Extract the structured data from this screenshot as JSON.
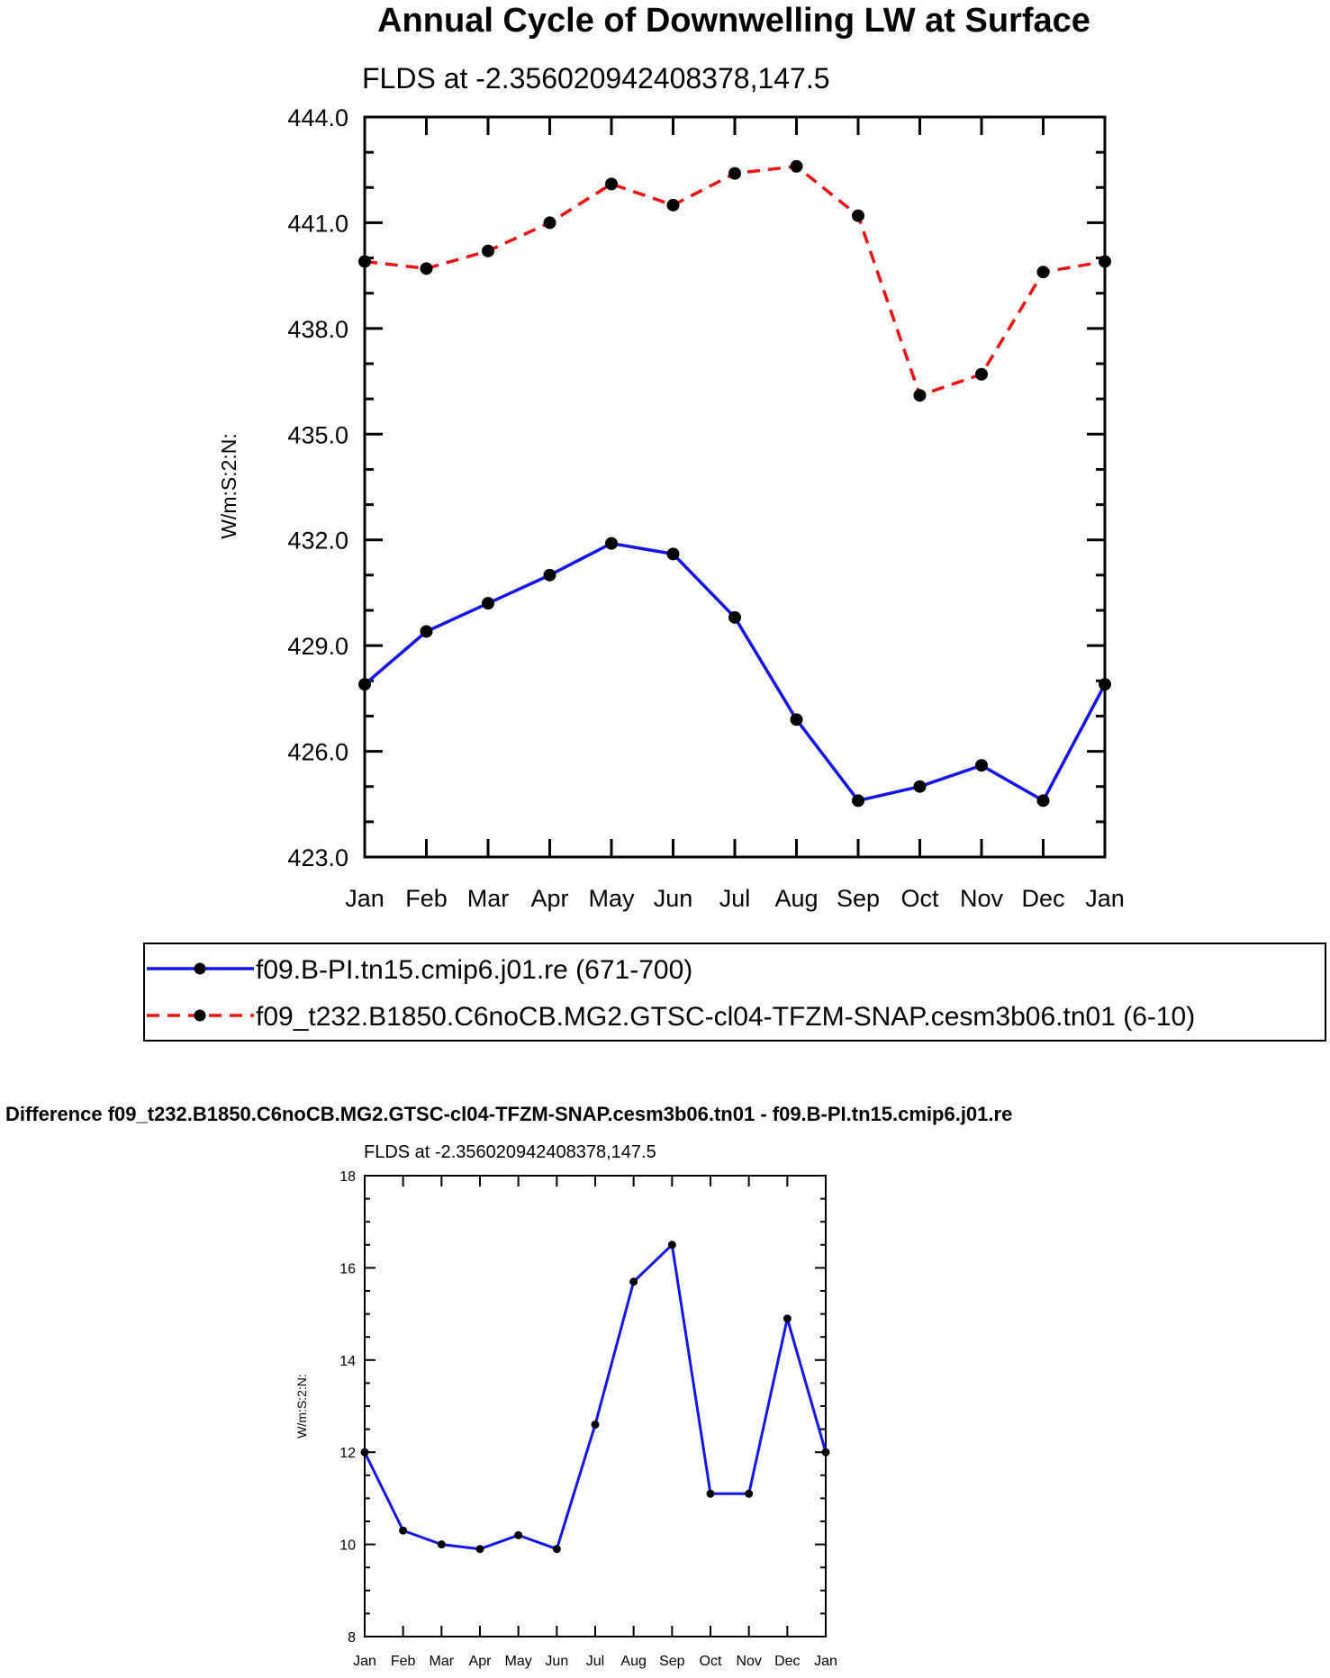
{
  "chart_data": [
    {
      "type": "line",
      "title": "Annual Cycle of Downwelling LW at Surface",
      "subtitle": "FLDS at -2.356020942408378,147.5",
      "xlabel": "",
      "ylabel": "W/m:S:2:N:",
      "categories": [
        "Jan",
        "Feb",
        "Mar",
        "Apr",
        "May",
        "Jun",
        "Jul",
        "Aug",
        "Sep",
        "Oct",
        "Nov",
        "Dec",
        "Jan"
      ],
      "ylim": [
        423.0,
        444.0
      ],
      "yticks": [
        "423.0",
        "426.0",
        "429.0",
        "432.0",
        "435.0",
        "438.0",
        "441.0",
        "444.0"
      ],
      "series": [
        {
          "name": "f09.B-PI.tn15.cmip6.j01.re (671-700)",
          "color": "#1414ee",
          "dash": "solid",
          "values": [
            427.9,
            429.4,
            430.2,
            431.0,
            431.9,
            431.6,
            429.8,
            426.9,
            424.6,
            425.0,
            425.6,
            424.6,
            427.9
          ]
        },
        {
          "name": "f09_t232.B1850.C6noCB.MG2.GTSC-cl04-TFZM-SNAP.cesm3b06.tn01 (6-10)",
          "color": "#ee1111",
          "dash": "dashed",
          "values": [
            439.9,
            439.7,
            440.2,
            441.0,
            442.1,
            441.5,
            442.4,
            442.6,
            441.2,
            436.1,
            436.7,
            439.6,
            439.9
          ]
        }
      ],
      "legend": "bottom",
      "grid": false
    },
    {
      "type": "line",
      "title": "Difference f09_t232.B1850.C6noCB.MG2.GTSC-cl04-TFZM-SNAP.cesm3b06.tn01 - f09.B-PI.tn15.cmip6.j01.re",
      "subtitle": "FLDS at -2.356020942408378,147.5",
      "xlabel": "",
      "ylabel": "W/m:S:2:N:",
      "categories": [
        "Jan",
        "Feb",
        "Mar",
        "Apr",
        "May",
        "Jun",
        "Jul",
        "Aug",
        "Sep",
        "Oct",
        "Nov",
        "Dec",
        "Jan"
      ],
      "ylim": [
        8,
        18
      ],
      "yticks": [
        "8",
        "10",
        "12",
        "14",
        "16",
        "18"
      ],
      "series": [
        {
          "color": "#1414ee",
          "dash": "solid",
          "values": [
            12.0,
            10.3,
            10.0,
            9.9,
            10.2,
            9.9,
            12.6,
            15.7,
            16.5,
            11.1,
            11.1,
            14.9,
            12.0
          ]
        }
      ],
      "grid": false
    }
  ]
}
